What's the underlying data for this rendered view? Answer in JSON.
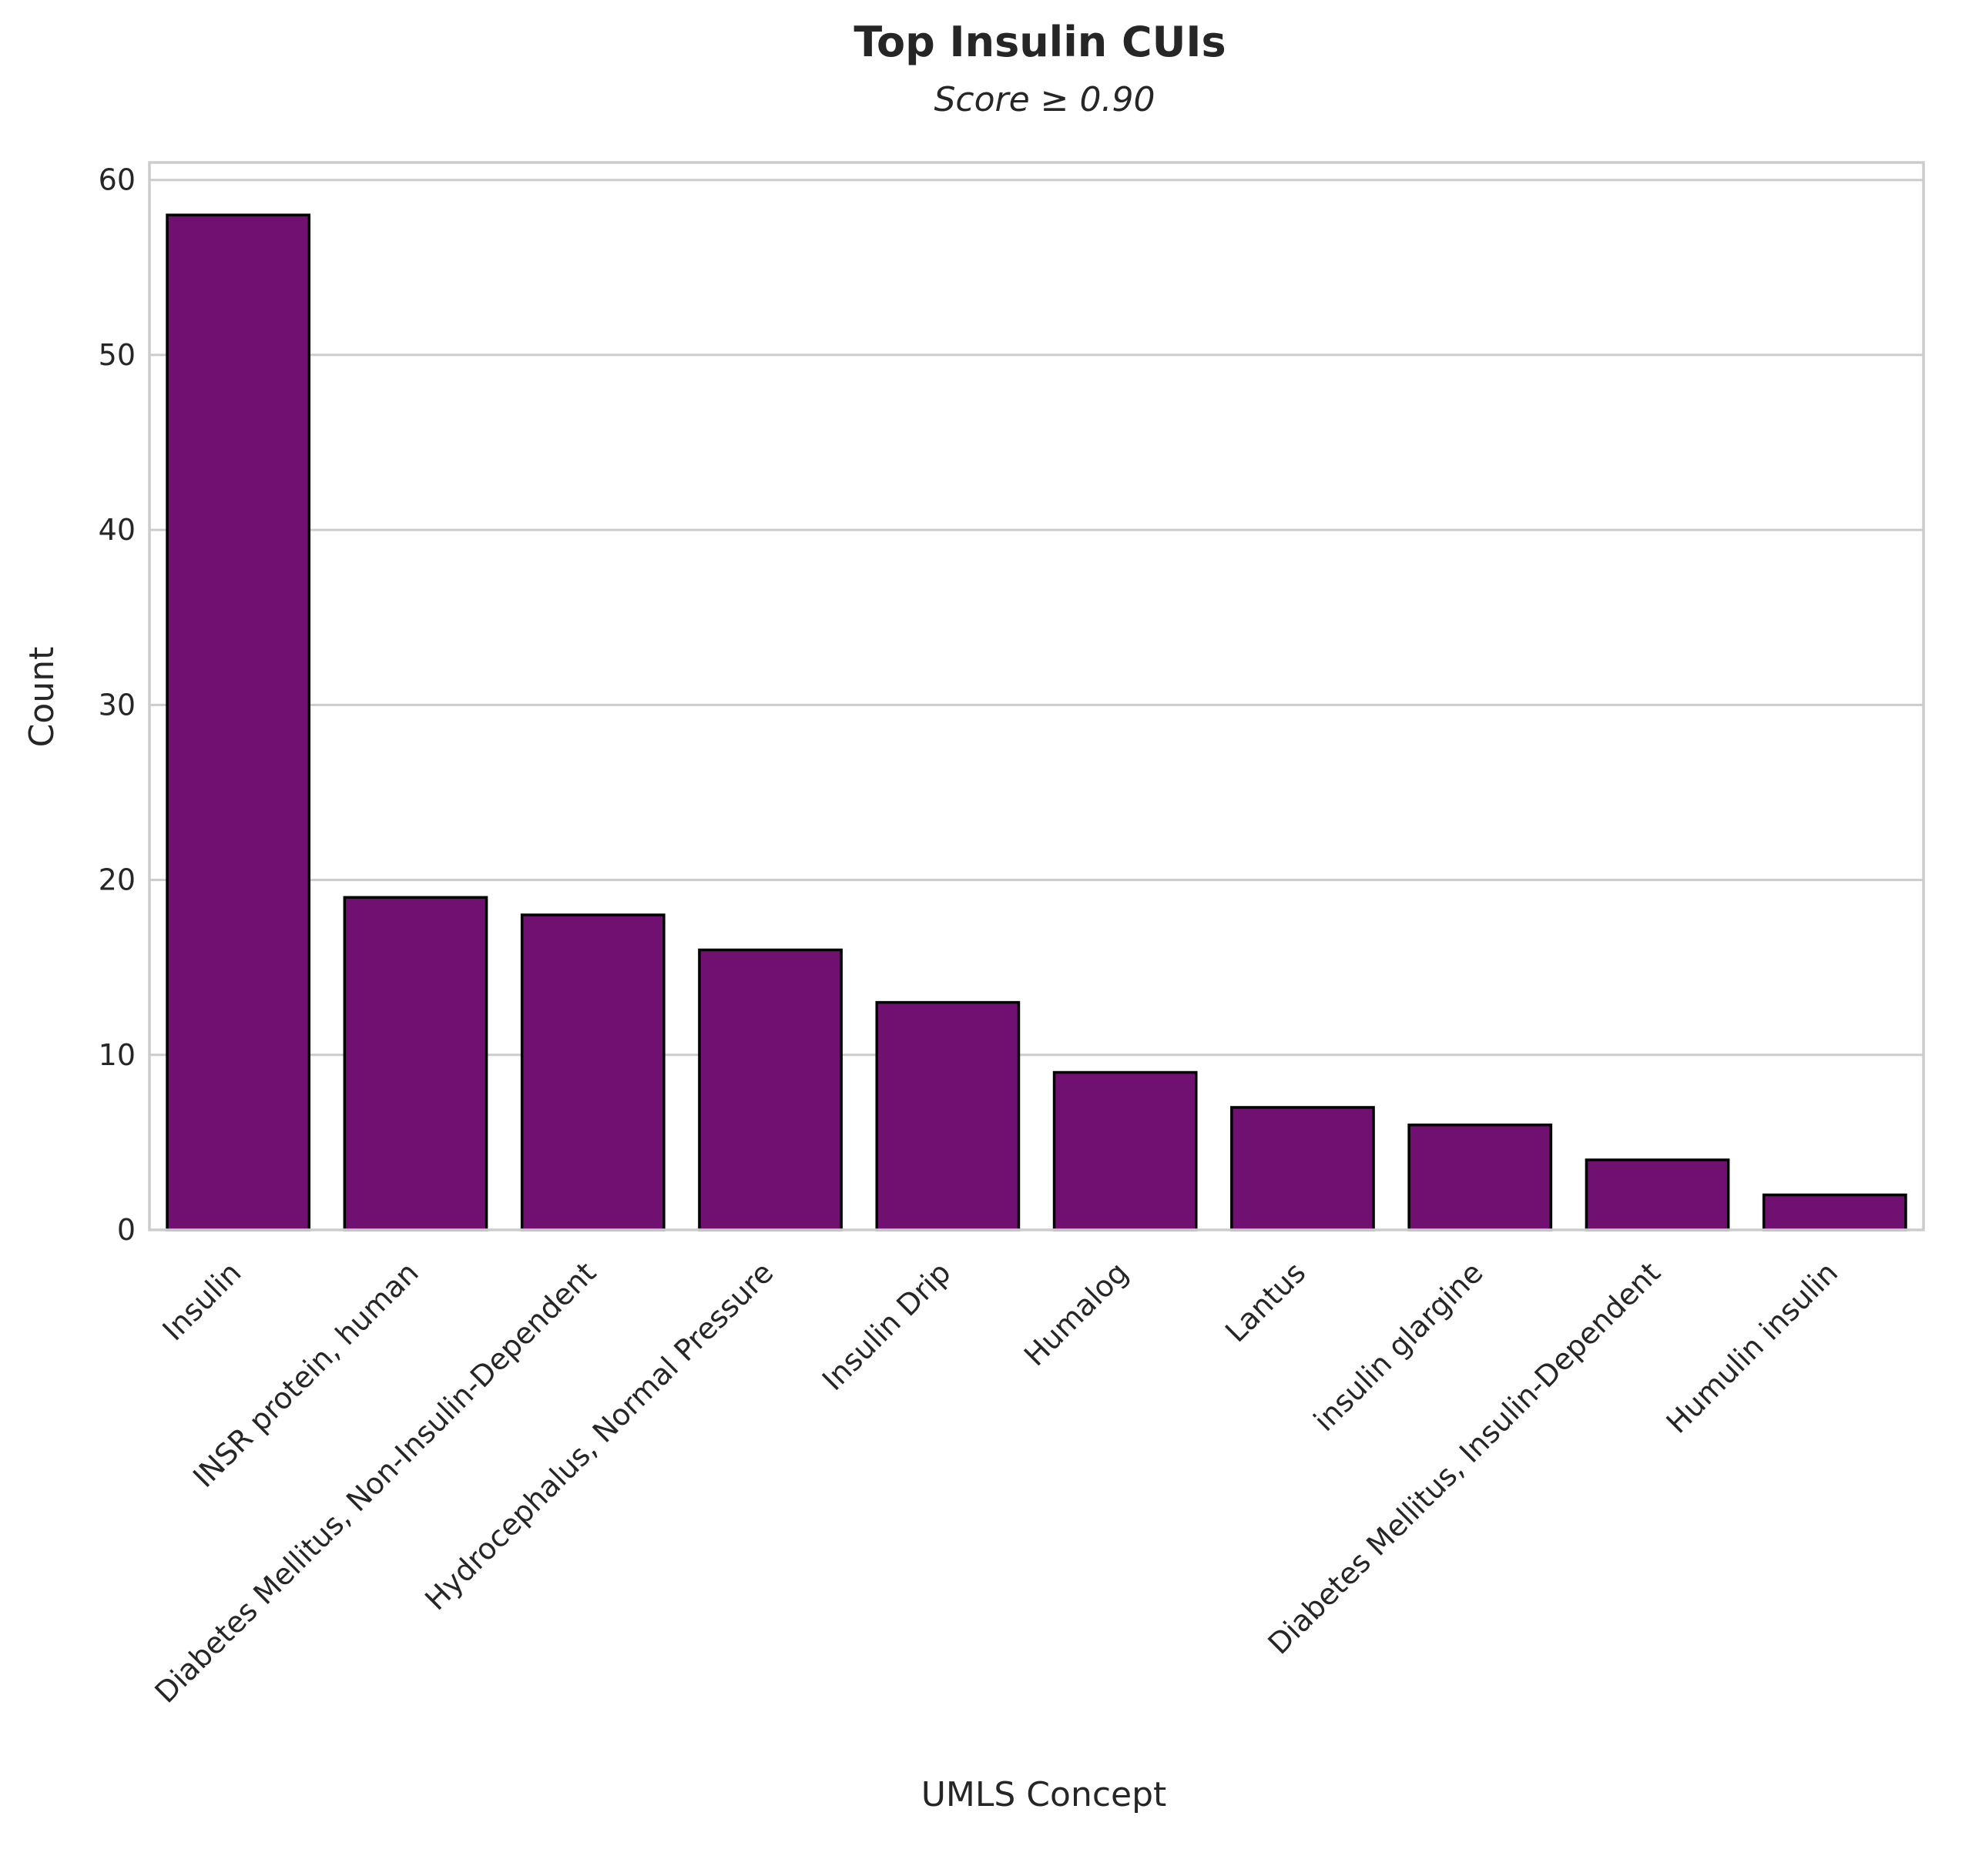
{
  "chart_data": {
    "type": "bar",
    "title": "Top Insulin CUIs",
    "subtitle": "Score ≥ 0.90",
    "xlabel": "UMLS Concept",
    "ylabel": "Count",
    "categories": [
      "Insulin",
      "INSR protein, human",
      "Diabetes Mellitus, Non-Insulin-Dependent",
      "Hydrocephalus, Normal Pressure",
      "Insulin Drip",
      "Humalog",
      "Lantus",
      "insulin glargine",
      "Diabetes Mellitus, Insulin-Dependent",
      "Humulin insulin"
    ],
    "values": [
      58,
      19,
      18,
      16,
      13,
      9,
      7,
      6,
      4,
      2
    ],
    "ylim": [
      0,
      61
    ],
    "yticks": [
      0,
      10,
      20,
      30,
      40,
      50,
      60
    ],
    "grid": "horizontal",
    "bar_color": "#701070",
    "edge_color": "#000000"
  }
}
